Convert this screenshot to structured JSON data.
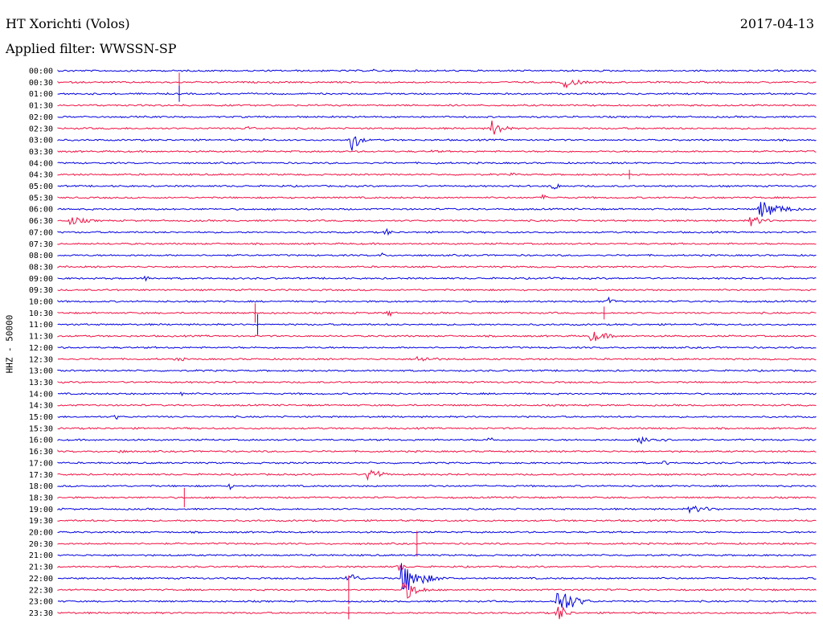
{
  "header": {
    "title": "HT Xorichti (Volos)",
    "date": "2017-04-13",
    "filter": "Applied filter: WWSSN-SP",
    "channel": "HHZ - 50000"
  },
  "chart_data": {
    "type": "line",
    "title": "HT Xorichti (Volos)",
    "ylabel": "HHZ - 50000",
    "trace_colors": [
      "#0000dd",
      "#ee1144"
    ],
    "rows": [
      "00:00",
      "00:30",
      "01:00",
      "01:30",
      "02:00",
      "02:30",
      "03:00",
      "03:30",
      "04:00",
      "04:30",
      "05:00",
      "05:30",
      "06:00",
      "06:30",
      "07:00",
      "07:30",
      "08:00",
      "08:30",
      "09:00",
      "09:30",
      "10:00",
      "10:30",
      "11:00",
      "11:30",
      "12:00",
      "12:30",
      "13:00",
      "13:30",
      "14:00",
      "14:30",
      "15:00",
      "15:30",
      "16:00",
      "16:30",
      "17:00",
      "17:30",
      "18:00",
      "18:30",
      "19:00",
      "19:30",
      "20:00",
      "20:30",
      "21:00",
      "21:30",
      "22:00",
      "22:30",
      "23:00",
      "23:30"
    ],
    "events": [
      {
        "row": 0,
        "minute": 12.5,
        "amplitude": 2,
        "duration": 1.0
      },
      {
        "row": 1,
        "minute": 20.0,
        "amplitude": 8,
        "duration": 1.6
      },
      {
        "row": 1,
        "minute": 4.8,
        "amplitude": 12,
        "spike": true
      },
      {
        "row": 2,
        "minute": 4.8,
        "amplitude": 10,
        "spike": true
      },
      {
        "row": 5,
        "minute": 7.5,
        "amplitude": 3,
        "duration": 1.2
      },
      {
        "row": 5,
        "minute": 17.2,
        "amplitude": 14,
        "duration": 1.0
      },
      {
        "row": 6,
        "minute": 11.6,
        "amplitude": 17,
        "duration": 0.8
      },
      {
        "row": 6,
        "minute": 8.2,
        "amplitude": 3,
        "duration": 0.3
      },
      {
        "row": 7,
        "minute": 14.8,
        "amplitude": 2,
        "duration": 1.8
      },
      {
        "row": 8,
        "minute": 15.0,
        "amplitude": 3,
        "duration": 0.2
      },
      {
        "row": 9,
        "minute": 18.0,
        "amplitude": 4,
        "duration": 0.2
      },
      {
        "row": 9,
        "minute": 22.6,
        "amplitude": 6,
        "spike": true
      },
      {
        "row": 10,
        "minute": 19.6,
        "amplitude": 7,
        "duration": 0.6
      },
      {
        "row": 11,
        "minute": 19.2,
        "amplitude": 5,
        "duration": 0.4
      },
      {
        "row": 12,
        "minute": 27.8,
        "amplitude": 12,
        "duration": 2.3
      },
      {
        "row": 13,
        "minute": 0.5,
        "amplitude": 6,
        "duration": 1.8
      },
      {
        "row": 13,
        "minute": 27.4,
        "amplitude": 7,
        "duration": 1.6
      },
      {
        "row": 14,
        "minute": 13.0,
        "amplitude": 7,
        "duration": 0.4
      },
      {
        "row": 16,
        "minute": 12.8,
        "amplitude": 4,
        "duration": 0.4
      },
      {
        "row": 18,
        "minute": 3.5,
        "amplitude": 5,
        "duration": 0.5
      },
      {
        "row": 18,
        "minute": 19.5,
        "amplitude": 4,
        "duration": 0.4
      },
      {
        "row": 20,
        "minute": 21.8,
        "amplitude": 6,
        "duration": 0.6
      },
      {
        "row": 21,
        "minute": 7.8,
        "amplitude": 12,
        "spike": true
      },
      {
        "row": 21,
        "minute": 13.1,
        "amplitude": 7,
        "duration": 0.3
      },
      {
        "row": 21,
        "minute": 21.6,
        "amplitude": 8,
        "spike": true
      },
      {
        "row": 22,
        "minute": 7.9,
        "amplitude": 13,
        "spike": true
      },
      {
        "row": 23,
        "minute": 21.1,
        "amplitude": 8,
        "duration": 1.8
      },
      {
        "row": 25,
        "minute": 4.8,
        "amplitude": 5,
        "duration": 0.5
      },
      {
        "row": 25,
        "minute": 14.2,
        "amplitude": 4,
        "duration": 2.6
      },
      {
        "row": 28,
        "minute": 4.9,
        "amplitude": 6,
        "duration": 0.2
      },
      {
        "row": 30,
        "minute": 2.3,
        "amplitude": 4,
        "duration": 0.4
      },
      {
        "row": 32,
        "minute": 17.1,
        "amplitude": 6,
        "duration": 0.4
      },
      {
        "row": 32,
        "minute": 23.0,
        "amplitude": 5,
        "duration": 2.8
      },
      {
        "row": 33,
        "minute": 2.5,
        "amplitude": 5,
        "duration": 0.4
      },
      {
        "row": 34,
        "minute": 24.0,
        "amplitude": 4,
        "duration": 0.5
      },
      {
        "row": 35,
        "minute": 12.3,
        "amplitude": 14,
        "duration": 1.0
      },
      {
        "row": 36,
        "minute": 6.8,
        "amplitude": 5,
        "duration": 0.3
      },
      {
        "row": 37,
        "minute": 5.0,
        "amplitude": 12,
        "spike": true
      },
      {
        "row": 38,
        "minute": 25.0,
        "amplitude": 5,
        "duration": 2.6
      },
      {
        "row": 41,
        "minute": 14.2,
        "amplitude": 16,
        "spike": true
      },
      {
        "row": 43,
        "minute": 13.5,
        "amplitude": 6,
        "duration": 0.6
      },
      {
        "row": 44,
        "minute": 11.5,
        "amplitude": 12,
        "duration": 0.8
      },
      {
        "row": 44,
        "minute": 13.6,
        "amplitude": 22,
        "duration": 2.0
      },
      {
        "row": 45,
        "minute": 13.7,
        "amplitude": 14,
        "duration": 1.4
      },
      {
        "row": 45,
        "minute": 11.5,
        "amplitude": 18,
        "spike": true
      },
      {
        "row": 46,
        "minute": 19.8,
        "amplitude": 22,
        "duration": 1.5
      },
      {
        "row": 47,
        "minute": 19.8,
        "amplitude": 14,
        "duration": 0.8
      },
      {
        "row": 47,
        "minute": 11.5,
        "amplitude": 8,
        "spike": true
      }
    ]
  }
}
